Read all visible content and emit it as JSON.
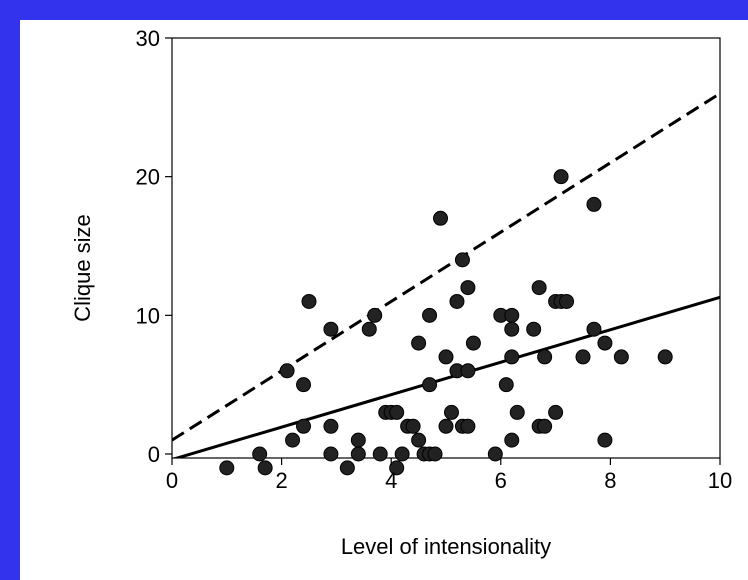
{
  "chart_data": {
    "type": "scatter",
    "title": "",
    "xlabel": "Level of intensionality",
    "ylabel": "Clique size",
    "xlim": [
      0,
      10
    ],
    "ylim": [
      -1,
      30
    ],
    "x_ticks": [
      "0",
      "2",
      "4",
      "6",
      "8",
      "10"
    ],
    "y_ticks": [
      "0",
      "10",
      "20",
      "30"
    ],
    "grid": false,
    "legend": "none",
    "colors": {
      "background": "#3333ee",
      "plot": "#ffffff",
      "marker": "#222222",
      "line": "#000000"
    },
    "points": [
      [
        1.0,
        -1
      ],
      [
        1.6,
        0
      ],
      [
        1.7,
        -1
      ],
      [
        2.1,
        6
      ],
      [
        2.2,
        1
      ],
      [
        2.4,
        5
      ],
      [
        2.4,
        2
      ],
      [
        2.5,
        11
      ],
      [
        2.9,
        9
      ],
      [
        2.9,
        2
      ],
      [
        2.9,
        0
      ],
      [
        3.2,
        -1
      ],
      [
        3.4,
        1
      ],
      [
        3.4,
        0
      ],
      [
        3.6,
        9
      ],
      [
        3.7,
        10
      ],
      [
        3.8,
        0
      ],
      [
        3.9,
        3
      ],
      [
        4.0,
        3
      ],
      [
        4.1,
        -1
      ],
      [
        4.1,
        3
      ],
      [
        4.2,
        0
      ],
      [
        4.3,
        2
      ],
      [
        4.4,
        2
      ],
      [
        4.5,
        8
      ],
      [
        4.5,
        1
      ],
      [
        4.6,
        0
      ],
      [
        4.7,
        5
      ],
      [
        4.7,
        10
      ],
      [
        4.7,
        0
      ],
      [
        4.8,
        0
      ],
      [
        4.9,
        17
      ],
      [
        5.0,
        7
      ],
      [
        5.0,
        2
      ],
      [
        5.1,
        3
      ],
      [
        5.2,
        6
      ],
      [
        5.2,
        11
      ],
      [
        5.3,
        14
      ],
      [
        5.3,
        2
      ],
      [
        5.4,
        6
      ],
      [
        5.4,
        12
      ],
      [
        5.4,
        2
      ],
      [
        5.5,
        8
      ],
      [
        5.9,
        0
      ],
      [
        6.0,
        10
      ],
      [
        6.1,
        5
      ],
      [
        6.2,
        10
      ],
      [
        6.2,
        9
      ],
      [
        6.2,
        7
      ],
      [
        6.2,
        1
      ],
      [
        6.3,
        3
      ],
      [
        6.6,
        9
      ],
      [
        6.7,
        2
      ],
      [
        6.7,
        12
      ],
      [
        6.8,
        7
      ],
      [
        6.8,
        2
      ],
      [
        7.0,
        11
      ],
      [
        7.0,
        3
      ],
      [
        7.1,
        20
      ],
      [
        7.1,
        11
      ],
      [
        7.2,
        11
      ],
      [
        7.5,
        7
      ],
      [
        7.7,
        18
      ],
      [
        7.7,
        9
      ],
      [
        7.9,
        8
      ],
      [
        7.9,
        1
      ],
      [
        8.2,
        7
      ],
      [
        9.0,
        7
      ]
    ],
    "fit_lines": [
      {
        "style": "dashed",
        "x": [
          0,
          10
        ],
        "y": [
          1,
          26
        ]
      },
      {
        "style": "solid",
        "x": [
          0,
          10
        ],
        "y": [
          -0.4,
          11.3
        ]
      }
    ]
  }
}
